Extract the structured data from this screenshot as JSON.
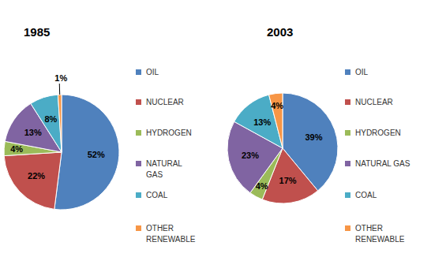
{
  "chart_data": [
    {
      "type": "pie",
      "title": "1985",
      "categories": [
        "OIL",
        "NUCLEAR",
        "HYDROGEN",
        "NATURAL GAS",
        "COAL",
        "OTHER RENEWABLE"
      ],
      "values": [
        52,
        22,
        4,
        13,
        8,
        1
      ],
      "value_labels": [
        "52%",
        "22%",
        "4%",
        "13%",
        "8%",
        "1%"
      ],
      "colors": [
        "#4f81bd",
        "#c0504d",
        "#9bbb59",
        "#8064a2",
        "#4bacc6",
        "#f79646"
      ],
      "data_labels": true,
      "legend": "right"
    },
    {
      "type": "pie",
      "title": "2003",
      "categories": [
        "OIL",
        "NUCLEAR",
        "HYDROGEN",
        "NATURAL GAS",
        "COAL",
        "OTHER RENEWABLE"
      ],
      "values": [
        39,
        17,
        4,
        23,
        13,
        4
      ],
      "value_labels": [
        "39%",
        "17%",
        "4%",
        "23%",
        "13%",
        "4%"
      ],
      "colors": [
        "#4f81bd",
        "#c0504d",
        "#9bbb59",
        "#8064a2",
        "#4bacc6",
        "#f79646"
      ],
      "data_labels": true,
      "legend": "right"
    }
  ]
}
